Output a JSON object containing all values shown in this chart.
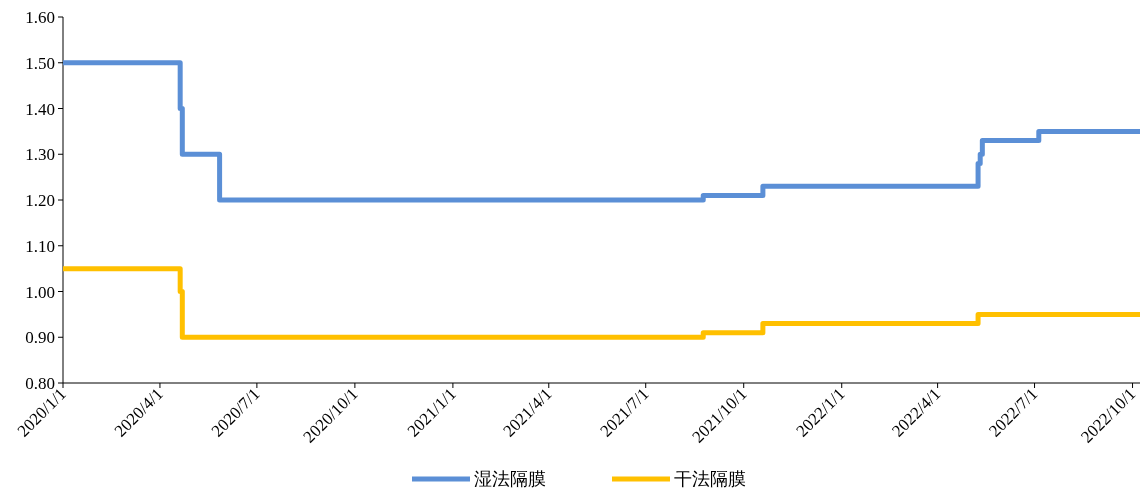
{
  "chart_data": {
    "type": "step",
    "ylim": [
      0.8,
      1.6
    ],
    "yticks": [
      {
        "value": 0.8,
        "label": "0.80"
      },
      {
        "value": 0.9,
        "label": "0.90"
      },
      {
        "value": 1.0,
        "label": "1.00"
      },
      {
        "value": 1.1,
        "label": "1.10"
      },
      {
        "value": 1.2,
        "label": "1.20"
      },
      {
        "value": 1.3,
        "label": "1.30"
      },
      {
        "value": 1.4,
        "label": "1.40"
      },
      {
        "value": 1.5,
        "label": "1.50"
      },
      {
        "value": 1.6,
        "label": "1.60"
      }
    ],
    "xlim": [
      "2020-01-01",
      "2022-10-08"
    ],
    "xticks": [
      {
        "value": "2020-01-01",
        "label": "2020/1/1"
      },
      {
        "value": "2020-04-01",
        "label": "2020/4/1"
      },
      {
        "value": "2020-07-01",
        "label": "2020/7/1"
      },
      {
        "value": "2020-10-01",
        "label": "2020/10/1"
      },
      {
        "value": "2021-01-01",
        "label": "2021/1/1"
      },
      {
        "value": "2021-04-01",
        "label": "2021/4/1"
      },
      {
        "value": "2021-07-01",
        "label": "2021/7/1"
      },
      {
        "value": "2021-10-01",
        "label": "2021/10/1"
      },
      {
        "value": "2022-01-01",
        "label": "2022/1/1"
      },
      {
        "value": "2022-04-01",
        "label": "2022/4/1"
      },
      {
        "value": "2022-07-01",
        "label": "2022/7/1"
      },
      {
        "value": "2022-10-01",
        "label": "2022/10/1"
      }
    ],
    "grid": false,
    "legend": "bottom",
    "series": [
      {
        "name": "湿法隔膜",
        "color": "#5b8fd6",
        "x": [
          "2020-01-01",
          "2020-04-20",
          "2020-04-22",
          "2020-05-27",
          "2021-08-24",
          "2021-10-19",
          "2022-05-09",
          "2022-05-11",
          "2022-05-13",
          "2022-07-05",
          "2022-10-08"
        ],
        "values": [
          1.5,
          1.4,
          1.3,
          1.2,
          1.21,
          1.23,
          1.28,
          1.3,
          1.33,
          1.35,
          1.35
        ]
      },
      {
        "name": "干法隔膜",
        "color": "#ffc000",
        "x": [
          "2020-01-01",
          "2020-04-20",
          "2020-04-22",
          "2021-08-24",
          "2021-10-19",
          "2022-05-09",
          "2022-10-08"
        ],
        "values": [
          1.05,
          1.0,
          0.9,
          0.91,
          0.93,
          0.95,
          0.95
        ]
      }
    ]
  }
}
